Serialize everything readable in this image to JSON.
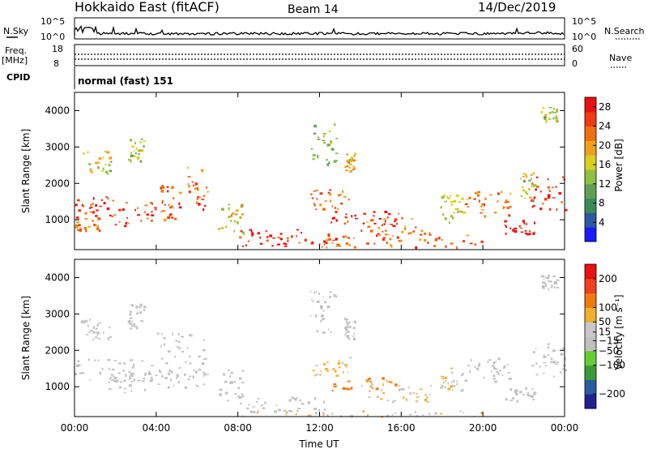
{
  "header": {
    "station": "Hokkaido East (fitACF)",
    "beam": "Beam 14",
    "date": "14/Dec/2019"
  },
  "noise_panel": {
    "left_label": "N.Sky",
    "right_label": "N.Search",
    "left_ticks": [
      "10^5",
      "10^0"
    ],
    "right_ticks": [
      "10^5",
      "10^0"
    ]
  },
  "freq_panel": {
    "left_label_top": "Freq.",
    "left_label_units": "[MHz]",
    "left_ticks": [
      "18",
      "8"
    ],
    "right_label": "Nave",
    "right_ticks": [
      "60",
      "0"
    ]
  },
  "cpid_panel": {
    "label": "CPID",
    "mode": "normal (fast) 151"
  },
  "colors": {
    "power_scale": [
      "#1a1aff",
      "#2c5aa0",
      "#3a8a5a",
      "#5fa055",
      "#90c040",
      "#d8d020",
      "#f0a020",
      "#f07010",
      "#f03a10",
      "#e81010"
    ],
    "velocity_scale": [
      "#e81010",
      "#f04020",
      "#f07a10",
      "#f0b030",
      "#c8c8c8",
      "#c0c0c0",
      "#66cc33",
      "#3a9a3a",
      "#2a5aa0",
      "#202090"
    ]
  },
  "chart_data": [
    {
      "type": "heatmap",
      "panel": "power",
      "xlabel": "",
      "ylabel": "Slant Range [km]",
      "x_ticks": [
        "00:00",
        "04:00",
        "08:00",
        "12:00",
        "16:00",
        "20:00",
        "00:00"
      ],
      "y_ticks": [
        1000,
        2000,
        3000,
        4000
      ],
      "xlim_hours": [
        0,
        24
      ],
      "ylim_km": [
        180,
        4500
      ],
      "colorbar": {
        "label": "Power [dB]",
        "ticks": [
          4,
          8,
          12,
          16,
          20,
          24,
          28
        ],
        "range": [
          0,
          30
        ]
      },
      "blobs": [
        {
          "x0": 0.0,
          "x1": 1.8,
          "y0": 1100,
          "y1": 1780,
          "v": 27
        },
        {
          "x0": 0.0,
          "x1": 1.2,
          "y0": 700,
          "y1": 1100,
          "v": 22
        },
        {
          "x0": 1.8,
          "x1": 4.0,
          "y0": 850,
          "y1": 1550,
          "v": 26
        },
        {
          "x0": 4.0,
          "x1": 5.5,
          "y0": 1000,
          "y1": 2000,
          "v": 25
        },
        {
          "x0": 5.5,
          "x1": 6.5,
          "y0": 1300,
          "y1": 2550,
          "v": 24
        },
        {
          "x0": 0.3,
          "x1": 1.8,
          "y0": 2300,
          "y1": 2900,
          "v": 16
        },
        {
          "x0": 2.6,
          "x1": 3.4,
          "y0": 2600,
          "y1": 3300,
          "v": 14
        },
        {
          "x0": 7.0,
          "x1": 8.3,
          "y0": 600,
          "y1": 1500,
          "v": 18
        },
        {
          "x0": 8.0,
          "x1": 12.5,
          "y0": 250,
          "y1": 750,
          "v": 28
        },
        {
          "x0": 12.0,
          "x1": 20.0,
          "y0": 250,
          "y1": 600,
          "v": 24
        },
        {
          "x0": 11.5,
          "x1": 13.5,
          "y0": 1300,
          "y1": 1850,
          "v": 24
        },
        {
          "x0": 12.5,
          "x1": 16.0,
          "y0": 800,
          "y1": 1300,
          "v": 28
        },
        {
          "x0": 14.0,
          "x1": 17.5,
          "y0": 600,
          "y1": 1100,
          "v": 22
        },
        {
          "x0": 11.5,
          "x1": 12.8,
          "y0": 2500,
          "y1": 3700,
          "v": 14
        },
        {
          "x0": 13.2,
          "x1": 13.7,
          "y0": 2300,
          "y1": 2900,
          "v": 18
        },
        {
          "x0": 17.8,
          "x1": 19.0,
          "y0": 900,
          "y1": 1700,
          "v": 16
        },
        {
          "x0": 19.0,
          "x1": 21.5,
          "y0": 1100,
          "y1": 1800,
          "v": 22
        },
        {
          "x0": 21.0,
          "x1": 22.5,
          "y0": 600,
          "y1": 1000,
          "v": 28
        },
        {
          "x0": 21.8,
          "x1": 22.5,
          "y0": 1500,
          "y1": 2300,
          "v": 16
        },
        {
          "x0": 22.3,
          "x1": 24.0,
          "y0": 1300,
          "y1": 2200,
          "v": 26
        },
        {
          "x0": 22.8,
          "x1": 23.6,
          "y0": 3700,
          "y1": 4100,
          "v": 16
        }
      ]
    },
    {
      "type": "heatmap",
      "panel": "velocity",
      "xlabel": "Time UT",
      "ylabel": "Slant Range [km]",
      "x_ticks": [
        "00:00",
        "04:00",
        "08:00",
        "12:00",
        "16:00",
        "20:00",
        "00:00"
      ],
      "y_ticks": [
        1000,
        2000,
        3000,
        4000
      ],
      "xlim_hours": [
        0,
        24
      ],
      "ylim_km": [
        180,
        4500
      ],
      "colorbar": {
        "label": "Velocity [m s⁻¹]",
        "ticks": [
          200,
          100,
          50,
          15,
          -15,
          -50,
          -100,
          -200
        ],
        "range": [
          -250,
          250
        ]
      },
      "blobs": [
        {
          "x0": 0.0,
          "x1": 3.8,
          "y0": 1150,
          "y1": 1800,
          "v": -5
        },
        {
          "x0": 1.6,
          "x1": 4.0,
          "y0": 850,
          "y1": 1400,
          "v": 0
        },
        {
          "x0": 4.0,
          "x1": 6.5,
          "y0": 1000,
          "y1": 2500,
          "v": -5
        },
        {
          "x0": 0.3,
          "x1": 1.8,
          "y0": 2300,
          "y1": 2900,
          "v": 5
        },
        {
          "x0": 2.6,
          "x1": 3.4,
          "y0": 2600,
          "y1": 3300,
          "v": 0
        },
        {
          "x0": 7.0,
          "x1": 8.3,
          "y0": 600,
          "y1": 1500,
          "v": 0
        },
        {
          "x0": 8.0,
          "x1": 12.5,
          "y0": 350,
          "y1": 750,
          "v": 5
        },
        {
          "x0": 8.0,
          "x1": 20.0,
          "y0": 200,
          "y1": 350,
          "v": 40
        },
        {
          "x0": 11.5,
          "x1": 13.5,
          "y0": 1300,
          "y1": 1850,
          "v": 60
        },
        {
          "x0": 12.5,
          "x1": 16.0,
          "y0": 900,
          "y1": 1300,
          "v": 120
        },
        {
          "x0": 14.0,
          "x1": 17.5,
          "y0": 600,
          "y1": 1100,
          "v": 45
        },
        {
          "x0": 11.5,
          "x1": 12.8,
          "y0": 2500,
          "y1": 3700,
          "v": 0
        },
        {
          "x0": 13.2,
          "x1": 13.7,
          "y0": 2300,
          "y1": 2900,
          "v": -5
        },
        {
          "x0": 17.8,
          "x1": 19.0,
          "y0": 900,
          "y1": 1700,
          "v": 30
        },
        {
          "x0": 19.0,
          "x1": 21.5,
          "y0": 1100,
          "y1": 1800,
          "v": 5
        },
        {
          "x0": 21.0,
          "x1": 22.5,
          "y0": 600,
          "y1": 1000,
          "v": -5
        },
        {
          "x0": 22.3,
          "x1": 24.0,
          "y0": 1300,
          "y1": 2200,
          "v": -5
        },
        {
          "x0": 22.8,
          "x1": 23.6,
          "y0": 3700,
          "y1": 4100,
          "v": 5
        }
      ]
    }
  ]
}
